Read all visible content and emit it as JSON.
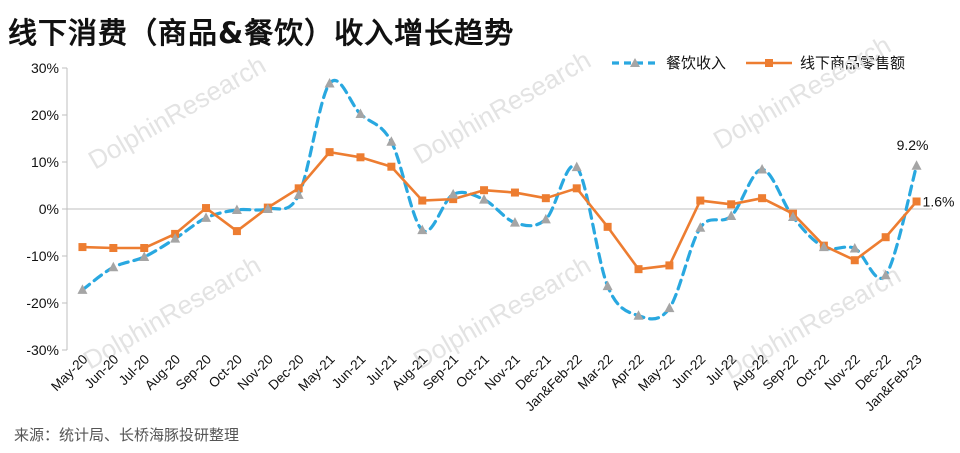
{
  "title": "线下消费（商品&餐饮）收入增长趋势",
  "source": "来源：统计局、长桥海豚投研整理",
  "watermark": "DolphinResearch",
  "colors": {
    "restaurant": "#29a8e0",
    "retail": "#ed7d31",
    "marker_restaurant": "#a5a5a5",
    "axis": "#bfbfbf"
  },
  "chart_data": {
    "type": "line",
    "title": "线下消费（商品&餐饮）收入增长趋势",
    "categories": [
      "May-20",
      "Jun-20",
      "Jul-20",
      "Aug-20",
      "Sep-20",
      "Oct-20",
      "Nov-20",
      "Dec-20",
      "May-21",
      "Jun-21",
      "Jul-21",
      "Aug-21",
      "Sep-21",
      "Oct-21",
      "Nov-21",
      "Dec-21",
      "Jan&Feb-22",
      "Mar-22",
      "Apr-22",
      "May-22",
      "Jun-22",
      "Jul-22",
      "Aug-22",
      "Sep-22",
      "Oct-22",
      "Nov-22",
      "Dec-22",
      "Jan&Feb-23"
    ],
    "series": [
      {
        "name": "餐饮收入",
        "style": "dashed",
        "marker": "triangle",
        "values": [
          -17.2,
          -12.4,
          -10.2,
          -6.3,
          -1.9,
          -0.2,
          0.0,
          3.0,
          26.7,
          20.2,
          14.3,
          -4.5,
          3.1,
          2.0,
          -2.9,
          -2.2,
          8.9,
          -16.4,
          -22.7,
          -21.1,
          -4.0,
          -1.5,
          8.4,
          -1.7,
          -8.1,
          -8.4,
          -14.1,
          9.2
        ]
      },
      {
        "name": "线下商品零售额",
        "style": "solid",
        "marker": "square",
        "values": [
          -8.1,
          -8.3,
          -8.3,
          -5.3,
          0.2,
          -4.7,
          0.3,
          4.4,
          12.1,
          11.0,
          9.0,
          1.8,
          2.1,
          4.0,
          3.5,
          2.3,
          4.4,
          -3.8,
          -12.8,
          -12.0,
          1.8,
          1.0,
          2.3,
          -1.0,
          -7.8,
          -10.9,
          -6.0,
          1.6
        ]
      }
    ],
    "ylim": [
      -30,
      30
    ],
    "y_ticks": [
      "30%",
      "20%",
      "10%",
      "0%",
      "-10%",
      "-20%",
      "-30%"
    ],
    "data_labels": [
      {
        "series": 0,
        "index": 27,
        "text": "9.2%"
      },
      {
        "series": 1,
        "index": 27,
        "text": "1.6%"
      }
    ],
    "legend_position": "top-right",
    "grid": false
  }
}
